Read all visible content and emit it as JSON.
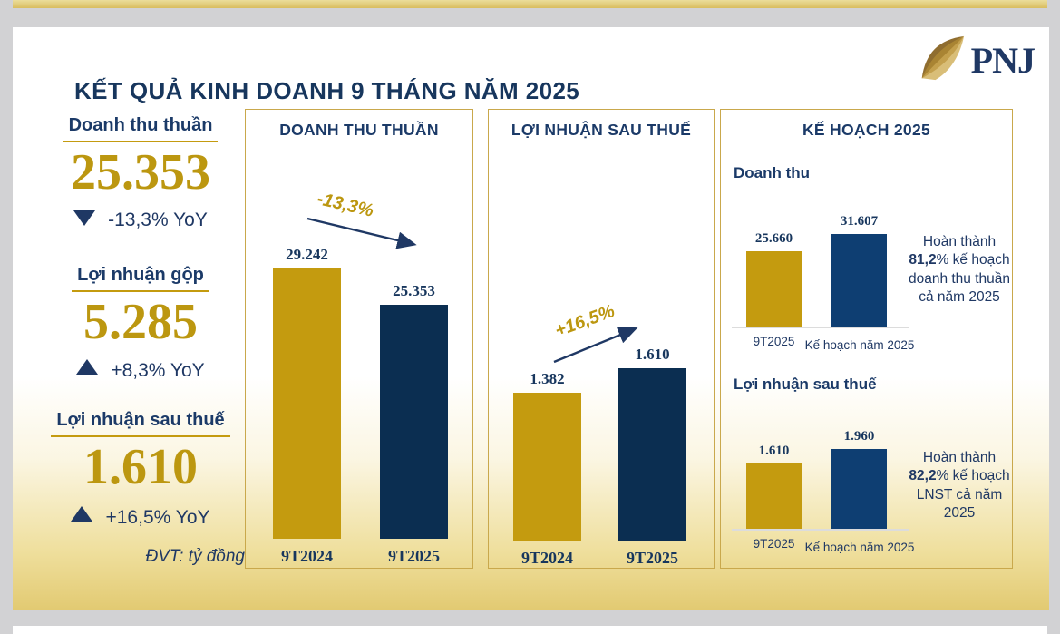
{
  "slide": {
    "title": "KẾT QUẢ KINH DOANH 9 THÁNG NĂM 2025",
    "brand": "PNJ",
    "unit_note": "ĐVT: tỷ đồng"
  },
  "colors": {
    "gold_bar": "#C49B0F",
    "navy_bar": "#0B2E51",
    "plan_blue_bar": "#0E3E72",
    "navy_text": "#1F3864",
    "gold_text": "#BC9710",
    "panel_border": "#C9A84C",
    "page_background": "#D2D2D4"
  },
  "metrics": [
    {
      "label": "Doanh thu thuần",
      "value": "25.353",
      "direction": "down",
      "delta": "-13,3% YoY"
    },
    {
      "label": "Lợi nhuận gộp",
      "value": "5.285",
      "direction": "up",
      "delta": "+8,3% YoY"
    },
    {
      "label": "Lợi nhuận sau thuế",
      "value": "1.610",
      "direction": "up",
      "delta": "+16,5% YoY"
    }
  ],
  "chart_data": [
    {
      "type": "bar",
      "title": "DOANH THU THUẦN",
      "categories": [
        "9T2024",
        "9T2025"
      ],
      "values": [
        29242,
        25353
      ],
      "value_labels": [
        "29.242",
        "25.353"
      ],
      "series_colors": [
        "#C49B0F",
        "#0B2E51"
      ],
      "annotation": "-13,3%",
      "unit": "tỷ đồng",
      "grid": false,
      "legend": "none"
    },
    {
      "type": "bar",
      "title": "LỢI NHUẬN SAU THUẾ",
      "categories": [
        "9T2024",
        "9T2025"
      ],
      "values": [
        1382,
        1610
      ],
      "value_labels": [
        "1.382",
        "1.610"
      ],
      "series_colors": [
        "#C49B0F",
        "#0B2E51"
      ],
      "annotation": "+16,5%",
      "unit": "tỷ đồng",
      "grid": false,
      "legend": "none"
    },
    {
      "type": "bar",
      "group_title": "KẾ HOẠCH 2025",
      "title": "Doanh thu",
      "categories": [
        "9T2025",
        "Kế hoạch năm 2025"
      ],
      "values": [
        25660,
        31607
      ],
      "value_labels": [
        "25.660",
        "31.607"
      ],
      "series_colors": [
        "#C49B0F",
        "#0E3E72"
      ],
      "note": {
        "pre": "Hoàn thành ",
        "strong": "81,2",
        "post": "% kế hoạch doanh thu thuần cả năm 2025"
      },
      "unit": "tỷ đồng",
      "grid": false,
      "legend": "none"
    },
    {
      "type": "bar",
      "group_title": "KẾ HOẠCH 2025",
      "title": "Lợi nhuận sau thuế",
      "categories": [
        "9T2025",
        "Kế hoạch năm 2025"
      ],
      "values": [
        1610,
        1960
      ],
      "value_labels": [
        "1.610",
        "1.960"
      ],
      "series_colors": [
        "#C49B0F",
        "#0E3E72"
      ],
      "note": {
        "pre": "Hoàn thành ",
        "strong": "82,2",
        "post": "% kế hoạch LNST cả năm 2025"
      },
      "unit": "tỷ đồng",
      "grid": false,
      "legend": "none"
    }
  ],
  "plan_panel": {
    "title": "KẾ HOẠCH 2025"
  }
}
